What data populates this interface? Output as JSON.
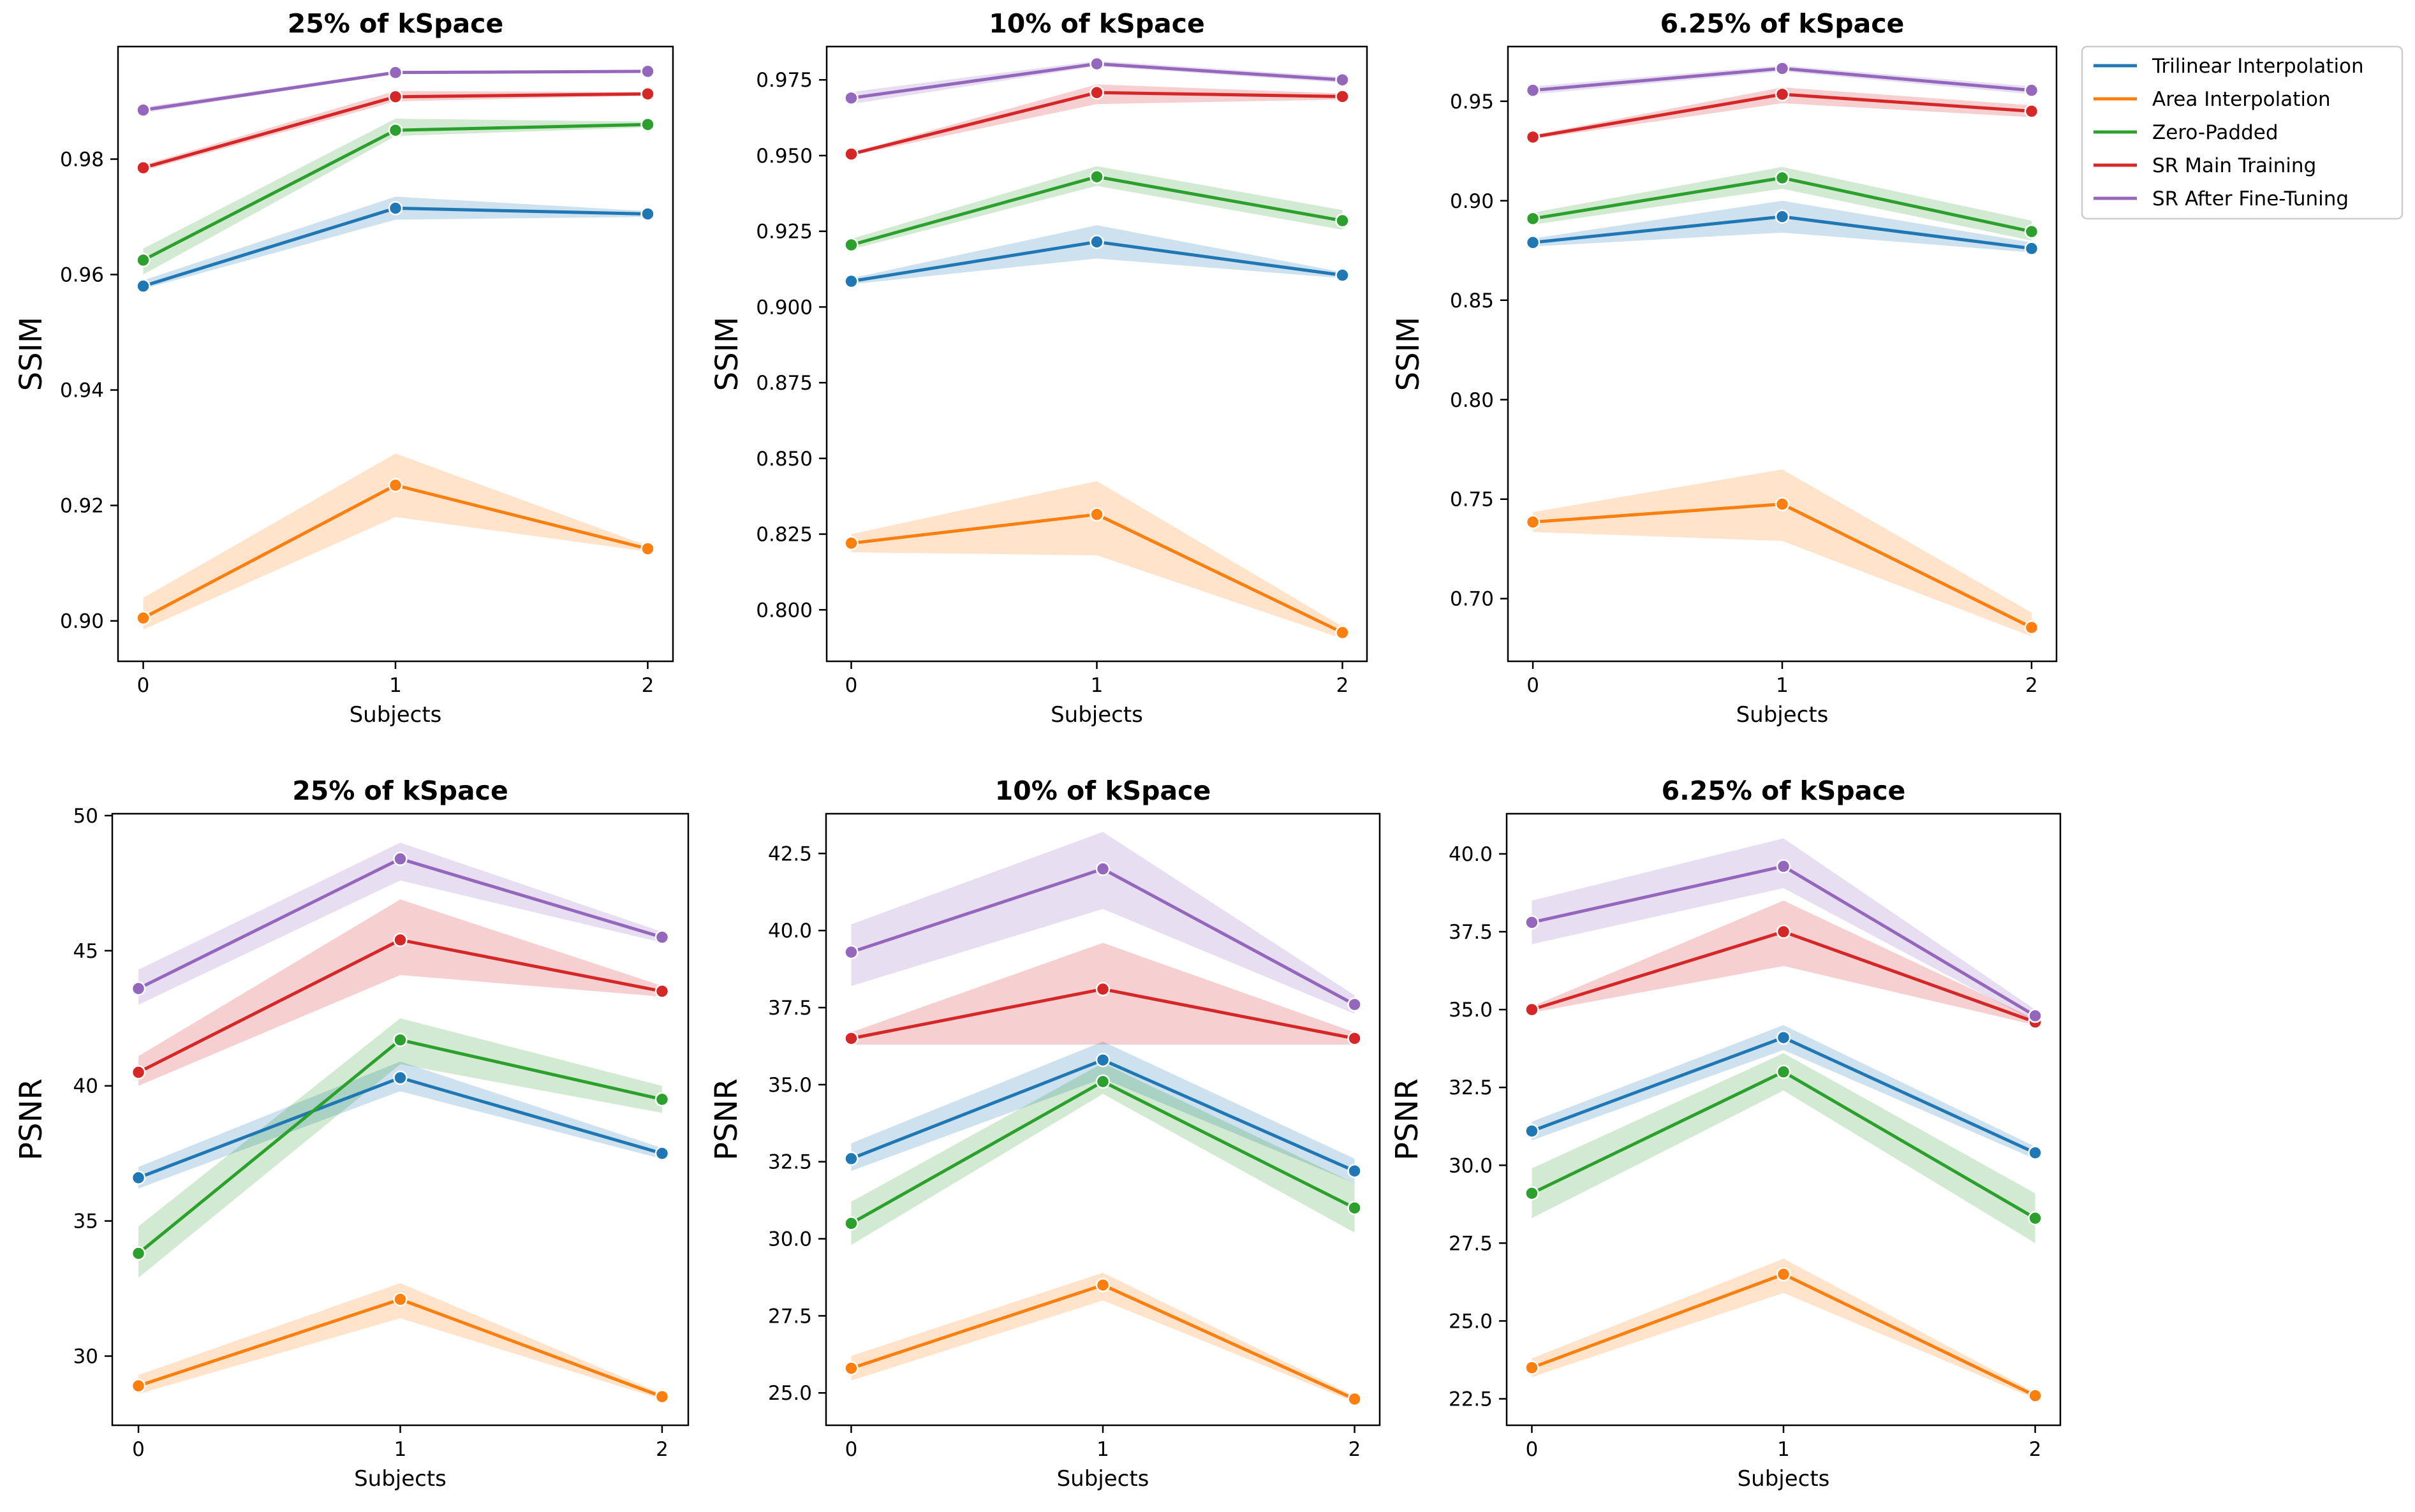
{
  "chart_data": [
    {
      "type": "line",
      "title": "25% of kSpace",
      "xlabel": "Subjects",
      "ylabel": "SSIM",
      "x": [
        0,
        1,
        2
      ],
      "xlim": [
        -0.1,
        2.1
      ],
      "ylim": [
        0.893,
        0.9995
      ],
      "yticks": [
        0.9,
        0.92,
        0.94,
        0.96,
        0.98
      ],
      "ytick_labels": [
        "0.90",
        "0.92",
        "0.94",
        "0.96",
        "0.98"
      ],
      "series": [
        {
          "name": "Trilinear Interpolation",
          "values": [
            0.958,
            0.9715,
            0.9705
          ],
          "ci_low": [
            0.9575,
            0.9695,
            0.97
          ],
          "ci_high": [
            0.959,
            0.9735,
            0.971
          ]
        },
        {
          "name": "Area Interpolation",
          "values": [
            0.9005,
            0.9235,
            0.9125
          ],
          "ci_low": [
            0.8985,
            0.918,
            0.912
          ],
          "ci_high": [
            0.904,
            0.929,
            0.913
          ]
        },
        {
          "name": "Zero-Padded",
          "values": [
            0.9625,
            0.985,
            0.986
          ],
          "ci_low": [
            0.96,
            0.984,
            0.9855
          ],
          "ci_high": [
            0.9645,
            0.987,
            0.9865
          ]
        },
        {
          "name": "SR Main Training",
          "values": [
            0.9785,
            0.9908,
            0.9913
          ],
          "ci_low": [
            0.978,
            0.99,
            0.991
          ],
          "ci_high": [
            0.979,
            0.9918,
            0.9916
          ]
        },
        {
          "name": "SR After Fine-Tuning",
          "values": [
            0.9885,
            0.995,
            0.9952
          ],
          "ci_low": [
            0.988,
            0.9948,
            0.995
          ],
          "ci_high": [
            0.989,
            0.9953,
            0.9954
          ]
        }
      ]
    },
    {
      "type": "line",
      "title": "10% of kSpace",
      "xlabel": "Subjects",
      "ylabel": "SSIM",
      "x": [
        0,
        1,
        2
      ],
      "xlim": [
        -0.1,
        2.1
      ],
      "ylim": [
        0.783,
        0.986
      ],
      "yticks": [
        0.8,
        0.825,
        0.85,
        0.875,
        0.9,
        0.925,
        0.95,
        0.975
      ],
      "ytick_labels": [
        "0.800",
        "0.825",
        "0.850",
        "0.875",
        "0.900",
        "0.925",
        "0.950",
        "0.975"
      ],
      "series": [
        {
          "name": "Trilinear Interpolation",
          "values": [
            0.9085,
            0.9215,
            0.9105
          ],
          "ci_low": [
            0.9075,
            0.916,
            0.9095
          ],
          "ci_high": [
            0.9095,
            0.927,
            0.9115
          ]
        },
        {
          "name": "Area Interpolation",
          "values": [
            0.822,
            0.8315,
            0.7925
          ],
          "ci_low": [
            0.819,
            0.818,
            0.7905
          ],
          "ci_high": [
            0.825,
            0.8425,
            0.7945
          ]
        },
        {
          "name": "Zero-Padded",
          "values": [
            0.9205,
            0.943,
            0.9285
          ],
          "ci_low": [
            0.919,
            0.94,
            0.9255
          ],
          "ci_high": [
            0.9225,
            0.9465,
            0.932
          ]
        },
        {
          "name": "SR Main Training",
          "values": [
            0.9505,
            0.9708,
            0.9695
          ],
          "ci_low": [
            0.95,
            0.967,
            0.9685
          ],
          "ci_high": [
            0.951,
            0.9735,
            0.9705
          ]
        },
        {
          "name": "SR After Fine-Tuning",
          "values": [
            0.969,
            0.9803,
            0.975
          ],
          "ci_low": [
            0.967,
            0.9795,
            0.974
          ],
          "ci_high": [
            0.971,
            0.9813,
            0.976
          ]
        }
      ]
    },
    {
      "type": "line",
      "title": "6.25% of kSpace",
      "xlabel": "Subjects",
      "ylabel": "SSIM",
      "x": [
        0,
        1,
        2
      ],
      "xlim": [
        -0.1,
        2.1
      ],
      "ylim": [
        0.6685,
        0.9775
      ],
      "yticks": [
        0.7,
        0.75,
        0.8,
        0.85,
        0.9,
        0.95
      ],
      "ytick_labels": [
        "0.70",
        "0.75",
        "0.80",
        "0.85",
        "0.90",
        "0.95"
      ],
      "series": [
        {
          "name": "Trilinear Interpolation",
          "values": [
            0.879,
            0.892,
            0.876
          ],
          "ci_low": [
            0.877,
            0.884,
            0.874
          ],
          "ci_high": [
            0.881,
            0.9,
            0.879
          ]
        },
        {
          "name": "Area Interpolation",
          "values": [
            0.7385,
            0.7475,
            0.6855
          ],
          "ci_low": [
            0.7335,
            0.729,
            0.681
          ],
          "ci_high": [
            0.7435,
            0.765,
            0.693
          ]
        },
        {
          "name": "Zero-Padded",
          "values": [
            0.891,
            0.9115,
            0.8845
          ],
          "ci_low": [
            0.888,
            0.906,
            0.88
          ],
          "ci_high": [
            0.894,
            0.917,
            0.89
          ]
        },
        {
          "name": "SR Main Training",
          "values": [
            0.932,
            0.9535,
            0.945
          ],
          "ci_low": [
            0.931,
            0.949,
            0.942
          ],
          "ci_high": [
            0.933,
            0.957,
            0.948
          ]
        },
        {
          "name": "SR After Fine-Tuning",
          "values": [
            0.9555,
            0.9665,
            0.9555
          ],
          "ci_low": [
            0.9535,
            0.965,
            0.9535
          ],
          "ci_high": [
            0.9575,
            0.968,
            0.9575
          ]
        }
      ]
    },
    {
      "type": "line",
      "title": "25% of kSpace",
      "xlabel": "Subjects",
      "ylabel": "PSNR",
      "x": [
        0,
        1,
        2
      ],
      "xlim": [
        -0.1,
        2.1
      ],
      "ylim": [
        27.44,
        50.07
      ],
      "yticks": [
        30,
        35,
        40,
        45,
        50
      ],
      "ytick_labels": [
        "30",
        "35",
        "40",
        "45",
        "50"
      ],
      "series": [
        {
          "name": "Trilinear Interpolation",
          "values": [
            36.6,
            40.3,
            37.5
          ],
          "ci_low": [
            36.2,
            39.8,
            37.3
          ],
          "ci_high": [
            37.0,
            40.9,
            37.7
          ]
        },
        {
          "name": "Area Interpolation",
          "values": [
            28.9,
            32.1,
            28.5
          ],
          "ci_low": [
            28.6,
            31.4,
            28.4
          ],
          "ci_high": [
            29.3,
            32.7,
            28.6
          ]
        },
        {
          "name": "Zero-Padded",
          "values": [
            33.8,
            41.7,
            39.5
          ],
          "ci_low": [
            32.9,
            40.8,
            39.0
          ],
          "ci_high": [
            34.8,
            42.5,
            40.0
          ]
        },
        {
          "name": "SR Main Training",
          "values": [
            40.5,
            45.4,
            43.5
          ],
          "ci_low": [
            40.0,
            44.1,
            43.3
          ],
          "ci_high": [
            41.1,
            46.9,
            43.7
          ]
        },
        {
          "name": "SR After Fine-Tuning",
          "values": [
            43.6,
            48.4,
            45.5
          ],
          "ci_low": [
            43.0,
            47.6,
            45.3
          ],
          "ci_high": [
            44.3,
            49.0,
            45.7
          ]
        }
      ]
    },
    {
      "type": "line",
      "title": "10% of kSpace",
      "xlabel": "Subjects",
      "ylabel": "PSNR",
      "x": [
        0,
        1,
        2
      ],
      "xlim": [
        -0.1,
        2.1
      ],
      "ylim": [
        23.95,
        43.79
      ],
      "yticks": [
        25.0,
        27.5,
        30.0,
        32.5,
        35.0,
        37.5,
        40.0,
        42.5
      ],
      "ytick_labels": [
        "25.0",
        "27.5",
        "30.0",
        "32.5",
        "35.0",
        "37.5",
        "40.0",
        "42.5"
      ],
      "series": [
        {
          "name": "Trilinear Interpolation",
          "values": [
            32.6,
            35.8,
            32.2
          ],
          "ci_low": [
            32.2,
            35.2,
            31.8
          ],
          "ci_high": [
            33.1,
            36.4,
            32.6
          ]
        },
        {
          "name": "Area Interpolation",
          "values": [
            25.8,
            28.5,
            24.8
          ],
          "ci_low": [
            25.4,
            28.0,
            24.7
          ],
          "ci_high": [
            26.2,
            28.9,
            24.9
          ]
        },
        {
          "name": "Zero-Padded",
          "values": [
            30.5,
            35.1,
            31.0
          ],
          "ci_low": [
            29.8,
            34.7,
            30.2
          ],
          "ci_high": [
            31.2,
            35.7,
            31.8
          ]
        },
        {
          "name": "SR Main Training",
          "values": [
            36.5,
            38.1,
            36.5
          ],
          "ci_low": [
            36.3,
            36.3,
            36.3
          ],
          "ci_high": [
            36.7,
            39.6,
            36.7
          ]
        },
        {
          "name": "SR After Fine-Tuning",
          "values": [
            39.3,
            42.0,
            37.6
          ],
          "ci_low": [
            38.2,
            40.7,
            37.3
          ],
          "ci_high": [
            40.2,
            43.2,
            37.9
          ]
        }
      ]
    },
    {
      "type": "line",
      "title": "6.25% of kSpace",
      "xlabel": "Subjects",
      "ylabel": "PSNR",
      "x": [
        0,
        1,
        2
      ],
      "xlim": [
        -0.1,
        2.1
      ],
      "ylim": [
        21.65,
        41.29
      ],
      "yticks": [
        22.5,
        25.0,
        27.5,
        30.0,
        32.5,
        35.0,
        37.5,
        40.0
      ],
      "ytick_labels": [
        "22.5",
        "25.0",
        "27.5",
        "30.0",
        "32.5",
        "35.0",
        "37.5",
        "40.0"
      ],
      "series": [
        {
          "name": "Trilinear Interpolation",
          "values": [
            31.1,
            34.1,
            30.4
          ],
          "ci_low": [
            30.8,
            33.7,
            30.2
          ],
          "ci_high": [
            31.4,
            34.5,
            30.6
          ]
        },
        {
          "name": "Area Interpolation",
          "values": [
            23.5,
            26.5,
            22.6
          ],
          "ci_low": [
            23.2,
            25.9,
            22.5
          ],
          "ci_high": [
            23.8,
            27.0,
            22.7
          ]
        },
        {
          "name": "Zero-Padded",
          "values": [
            29.1,
            33.0,
            28.3
          ],
          "ci_low": [
            28.3,
            32.4,
            27.5
          ],
          "ci_high": [
            29.9,
            33.6,
            29.1
          ]
        },
        {
          "name": "SR Main Training",
          "values": [
            35.0,
            37.5,
            34.6
          ],
          "ci_low": [
            34.9,
            36.4,
            34.5
          ],
          "ci_high": [
            35.1,
            38.5,
            34.7
          ]
        },
        {
          "name": "SR After Fine-Tuning",
          "values": [
            37.8,
            39.6,
            34.8
          ],
          "ci_low": [
            37.1,
            38.9,
            34.6
          ],
          "ci_high": [
            38.5,
            40.5,
            35.0
          ]
        }
      ]
    }
  ],
  "legend": {
    "placement": "upper right, outside top-right subplot",
    "entries": [
      "Trilinear Interpolation",
      "Area Interpolation",
      "Zero-Padded",
      "SR Main Training",
      "SR After Fine-Tuning"
    ]
  },
  "colors": {
    "Trilinear Interpolation": "#1f77b4",
    "Area Interpolation": "#ff7f0e",
    "Zero-Padded": "#2ca02c",
    "SR Main Training": "#d62728",
    "SR After Fine-Tuning": "#9467bd"
  }
}
